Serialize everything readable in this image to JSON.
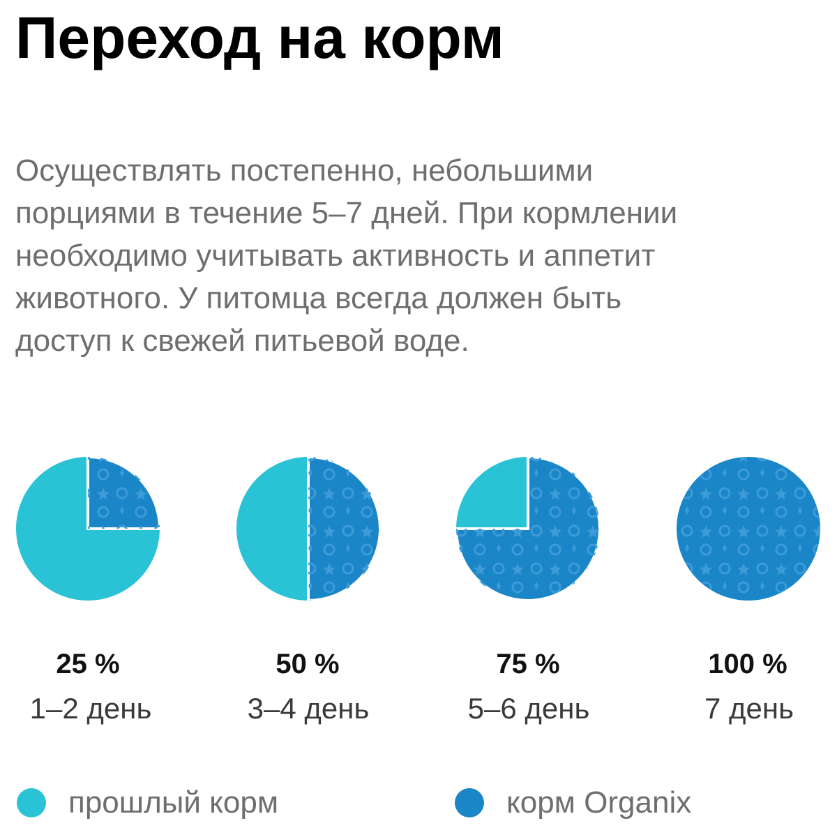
{
  "title": "Переход на корм",
  "description_lines": [
    "Осуществлять постепенно, небольшими",
    "порциями в течение 5–7 дней. При кормлении",
    "необходимо учитывать активность и аппетит",
    "животного. У питомца всегда должен быть",
    "доступ к свежей питьевой воде."
  ],
  "colors": {
    "old_feed": "#2ac3d6",
    "organix": "#1a86c8",
    "organix_pattern": "#3a9ad6"
  },
  "chart_data": {
    "type": "pie",
    "unit": "%",
    "series": [
      {
        "name": "корм Organix",
        "values": [
          25,
          50,
          75,
          100
        ]
      },
      {
        "name": "прошлый корм",
        "values": [
          75,
          50,
          25,
          0
        ]
      }
    ],
    "stages": [
      {
        "percent_label": "25 %",
        "day_label": "1–2 день",
        "organix_percent": 25
      },
      {
        "percent_label": "50 %",
        "day_label": "3–4 день",
        "organix_percent": 50
      },
      {
        "percent_label": "75 %",
        "day_label": "5–6 день",
        "organix_percent": 75
      },
      {
        "percent_label": "100 %",
        "day_label": "7 день",
        "organix_percent": 100
      }
    ],
    "legend": [
      {
        "label": "прошлый корм",
        "color": "#2ac3d6"
      },
      {
        "label": "корм Organix",
        "color": "#1a86c8"
      }
    ],
    "legend_position": "bottom"
  }
}
